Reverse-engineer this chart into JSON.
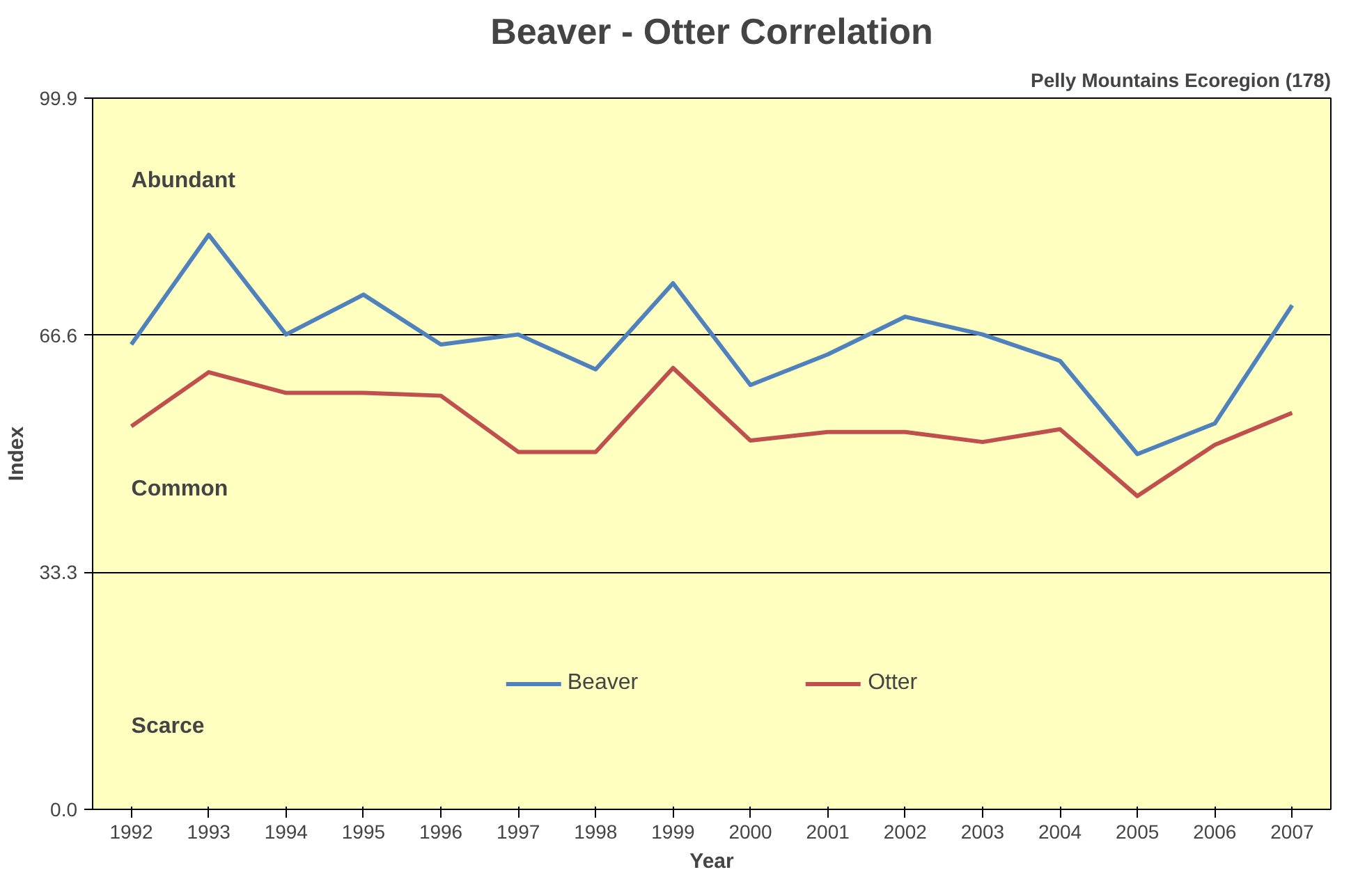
{
  "chart_data": {
    "type": "line",
    "title": "Beaver - Otter Correlation",
    "subtitle": "Pelly Mountains Ecoregion (178)",
    "xlabel": "Year",
    "ylabel": "Index",
    "categories": [
      "1992",
      "1993",
      "1994",
      "1995",
      "1996",
      "1997",
      "1998",
      "1999",
      "2000",
      "2001",
      "2002",
      "2003",
      "2004",
      "2005",
      "2006",
      "2007"
    ],
    "series": [
      {
        "name": "Beaver",
        "color": "#4f81bd",
        "values": [
          65.3,
          80.7,
          66.7,
          72.3,
          65.3,
          66.7,
          61.8,
          73.9,
          59.6,
          63.9,
          69.2,
          66.7,
          63.0,
          49.9,
          54.2,
          70.8
        ]
      },
      {
        "name": "Otter",
        "color": "#c0504d",
        "values": [
          53.8,
          61.4,
          58.5,
          58.5,
          58.1,
          50.2,
          50.2,
          62.0,
          51.8,
          53.0,
          53.0,
          51.6,
          53.4,
          44.0,
          51.2,
          55.7
        ]
      }
    ],
    "ylim": [
      0,
      99.9
    ],
    "yticks": [
      {
        "value": 0,
        "label": "0.0"
      },
      33.3,
      66.6,
      99.9
    ],
    "annotations": [
      "Abundant",
      "Common",
      "Scarce"
    ],
    "grid": "y",
    "legend": "bottom",
    "marker": "none",
    "line_style": "solid"
  }
}
